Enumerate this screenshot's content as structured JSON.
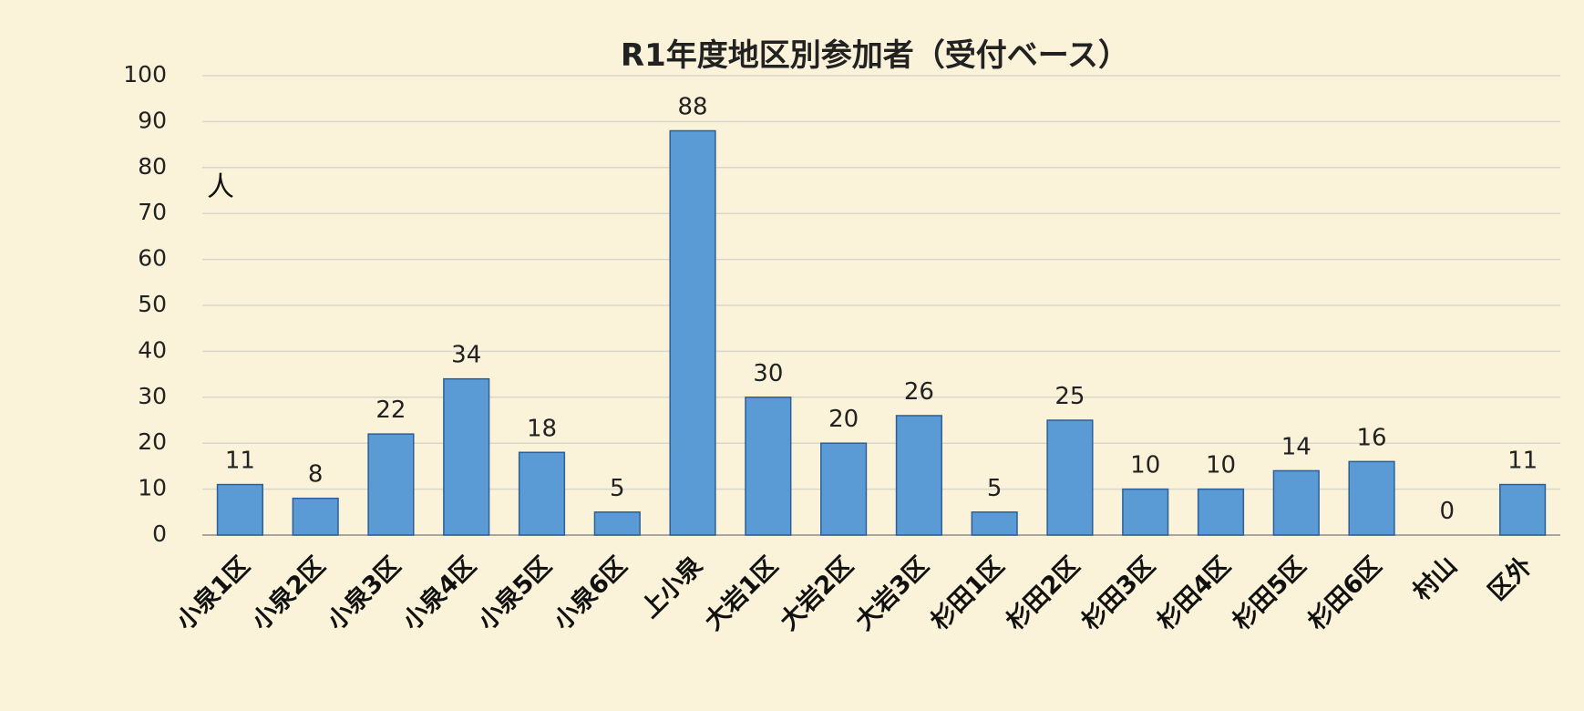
{
  "chart_data": {
    "type": "bar",
    "title": "R1年度地区別参加者（受付ベース）",
    "ylabel": "人",
    "xlabel": "",
    "ylim": [
      0,
      100
    ],
    "yticks": [
      0,
      10,
      20,
      30,
      40,
      50,
      60,
      70,
      80,
      90,
      100
    ],
    "grid": true,
    "legend": "none",
    "colors": {
      "bar": "#5b9bd5",
      "background": "#fbf3d9"
    },
    "categories": [
      "小泉1区",
      "小泉2区",
      "小泉3区",
      "小泉4区",
      "小泉5区",
      "小泉6区",
      "上小泉",
      "大岩1区",
      "大岩2区",
      "大岩3区",
      "杉田1区",
      "杉田2区",
      "杉田3区",
      "杉田4区",
      "杉田5区",
      "杉田6区",
      "村山",
      "区外"
    ],
    "values": [
      11,
      8,
      22,
      34,
      18,
      5,
      88,
      30,
      20,
      26,
      5,
      25,
      10,
      10,
      14,
      16,
      0,
      11
    ]
  }
}
